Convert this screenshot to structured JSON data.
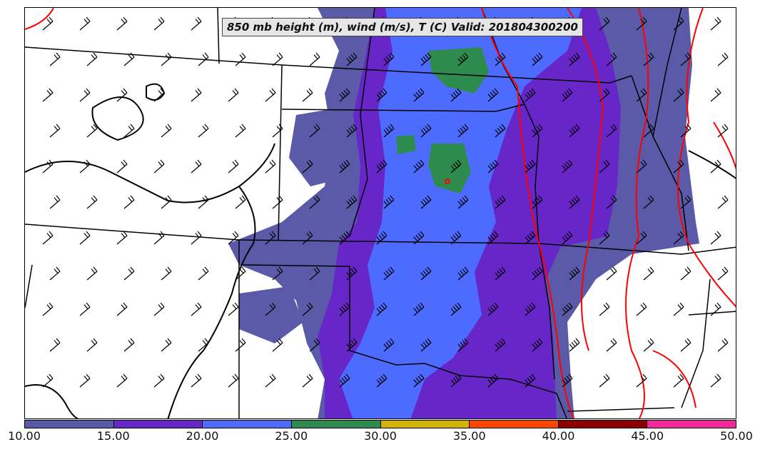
{
  "title": "850 mb height (m), wind (m/s), T (C) Valid: 201804300200",
  "colorbar": {
    "bins": [
      {
        "min": 10,
        "max": 15,
        "color": "#5a5aa8"
      },
      {
        "min": 15,
        "max": 20,
        "color": "#6626c8"
      },
      {
        "min": 20,
        "max": 25,
        "color": "#4d6bff"
      },
      {
        "min": 25,
        "max": 30,
        "color": "#2e8b4e"
      },
      {
        "min": 30,
        "max": 35,
        "color": "#d2b400"
      },
      {
        "min": 35,
        "max": 40,
        "color": "#ff4500"
      },
      {
        "min": 40,
        "max": 45,
        "color": "#8b0000"
      },
      {
        "min": 45,
        "max": 50,
        "color": "#f0289a"
      }
    ],
    "tick_labels": [
      "10.00",
      "15.00",
      "20.00",
      "25.00",
      "30.00",
      "35.00",
      "40.00",
      "45.00",
      "50.00"
    ]
  },
  "colors": {
    "height_contour": "#000000",
    "temperature_contour": "#ff0000",
    "state_borders": "#000000",
    "wind_barbs": "#000000"
  }
}
